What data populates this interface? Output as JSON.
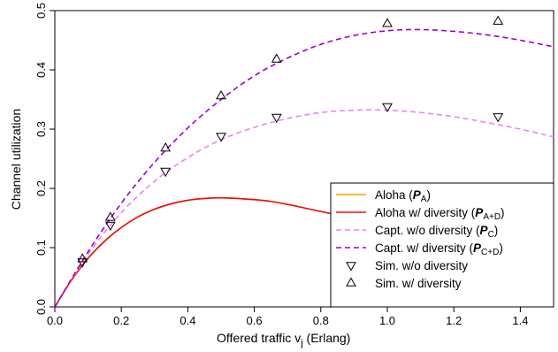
{
  "chart_data": {
    "type": "line",
    "title": "",
    "xlabel": "Offered traffic  v",
    "xlabel_sub": "j",
    "xlabel_unit": " (Erlang)",
    "ylabel": "Channel utilization",
    "xlim": [
      0,
      1.5
    ],
    "ylim": [
      0,
      0.5
    ],
    "xticks": [
      0.0,
      0.2,
      0.4,
      0.6,
      0.8,
      1.0,
      1.2,
      1.4
    ],
    "xtick_labels": [
      "0.0",
      "0.2",
      "0.4",
      "0.6",
      "0.8",
      "1.0",
      "1.2",
      "1.4"
    ],
    "yticks": [
      0.0,
      0.1,
      0.2,
      0.3,
      0.4,
      0.5
    ],
    "ytick_labels": [
      "0.0",
      "0.1",
      "0.2",
      "0.3",
      "0.4",
      "0.5"
    ],
    "grid": false,
    "legend_position": "bottom-right",
    "series": [
      {
        "name": "Aloha (P_A)",
        "legend_main": "Aloha (",
        "legend_sym": "P",
        "legend_sub": "A",
        "legend_end": ")",
        "kind": "line",
        "style": "solid",
        "color": "#ff9900",
        "x": [
          0.0,
          0.05,
          0.1,
          0.15,
          0.2,
          0.25,
          0.3,
          0.35,
          0.4,
          0.45,
          0.5,
          0.55,
          0.6,
          0.65,
          0.7,
          0.75,
          0.8,
          0.85,
          0.9,
          0.95,
          1.0,
          1.05,
          1.1,
          1.15,
          1.2,
          1.25,
          1.3,
          1.35,
          1.4,
          1.45,
          1.5
        ],
        "y": [
          0.0,
          0.045,
          0.082,
          0.111,
          0.134,
          0.152,
          0.165,
          0.174,
          0.18,
          0.183,
          0.184,
          0.183,
          0.181,
          0.178,
          0.173,
          0.167,
          0.161,
          0.155,
          0.149,
          0.142,
          0.135,
          0.128,
          0.122,
          0.115,
          0.109,
          0.103,
          0.096,
          0.091,
          0.085,
          0.08,
          0.075
        ]
      },
      {
        "name": "Aloha w/ diversity (P_A+D)",
        "legend_main": "Aloha w/ diversity (",
        "legend_sym": "P",
        "legend_sub": "A+D",
        "legend_end": ")",
        "kind": "line",
        "style": "solid",
        "color": "#e8100a",
        "x": [
          0.0,
          0.05,
          0.1,
          0.15,
          0.2,
          0.25,
          0.3,
          0.35,
          0.4,
          0.45,
          0.5,
          0.55,
          0.6,
          0.65,
          0.7,
          0.75,
          0.8,
          0.85,
          0.9,
          0.95,
          1.0,
          1.05,
          1.1,
          1.15,
          1.2,
          1.25,
          1.3,
          1.35,
          1.4,
          1.45,
          1.5
        ],
        "y": [
          0.0,
          0.045,
          0.082,
          0.111,
          0.134,
          0.152,
          0.165,
          0.174,
          0.18,
          0.183,
          0.184,
          0.183,
          0.181,
          0.178,
          0.173,
          0.167,
          0.161,
          0.155,
          0.149,
          0.142,
          0.135,
          0.128,
          0.122,
          0.115,
          0.109,
          0.103,
          0.096,
          0.091,
          0.085,
          0.08,
          0.075
        ]
      },
      {
        "name": "Capt. w/o diversity (P_C)",
        "legend_main": "Capt. w/o diversity (",
        "legend_sym": "P",
        "legend_sub": "C",
        "legend_end": ")",
        "kind": "line",
        "style": "dashed",
        "color": "#ee82ee",
        "x": [
          0.0,
          0.1,
          0.2,
          0.3,
          0.4,
          0.5,
          0.6,
          0.7,
          0.8,
          0.9,
          1.0,
          1.1,
          1.2,
          1.3,
          1.4,
          1.5
        ],
        "y": [
          0.0,
          0.089,
          0.159,
          0.212,
          0.252,
          0.282,
          0.303,
          0.318,
          0.328,
          0.332,
          0.332,
          0.328,
          0.321,
          0.311,
          0.3,
          0.287
        ]
      },
      {
        "name": "Capt. w/ diversity (P_C+D)",
        "legend_main": "Capt. w/ diversity (",
        "legend_sym": "P",
        "legend_sub": "C+D",
        "legend_end": ")",
        "kind": "line",
        "style": "dashed",
        "color": "#9900cc",
        "x": [
          0.0,
          0.1,
          0.2,
          0.3,
          0.4,
          0.5,
          0.6,
          0.7,
          0.8,
          0.9,
          1.0,
          1.1,
          1.2,
          1.3,
          1.4,
          1.5
        ],
        "y": [
          0.0,
          0.093,
          0.175,
          0.244,
          0.302,
          0.35,
          0.39,
          0.42,
          0.443,
          0.458,
          0.466,
          0.468,
          0.465,
          0.459,
          0.45,
          0.439
        ]
      },
      {
        "name": "Sim. w/o diversity",
        "legend_main": "Sim. w/o diversity",
        "kind": "scatter",
        "marker": "triangle-down",
        "color": "#000000",
        "x": [
          0.083,
          0.167,
          0.333,
          0.5,
          0.667,
          1.0,
          1.333
        ],
        "y": [
          0.076,
          0.138,
          0.229,
          0.288,
          0.32,
          0.338,
          0.321
        ]
      },
      {
        "name": "Sim. w/ diversity",
        "legend_main": "Sim. w/ diversity",
        "kind": "scatter",
        "marker": "triangle-up",
        "color": "#000000",
        "x": [
          0.083,
          0.167,
          0.333,
          0.5,
          0.667,
          1.0,
          1.333
        ],
        "y": [
          0.081,
          0.151,
          0.268,
          0.356,
          0.418,
          0.478,
          0.482
        ]
      }
    ]
  }
}
